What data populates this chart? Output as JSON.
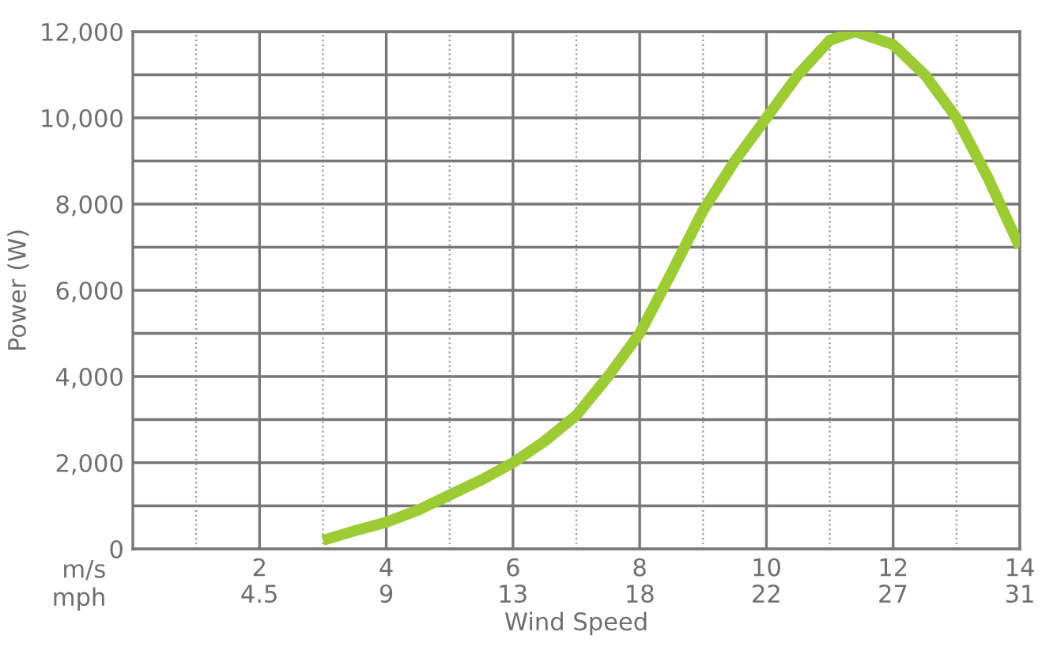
{
  "chart_data": {
    "type": "line",
    "xlabel": "Wind Speed",
    "ylabel": "Power (W)",
    "annotations": [
      "m/s\nmph"
    ],
    "x": [
      3,
      3.5,
      4,
      4.5,
      5,
      5.5,
      6,
      6.5,
      7,
      7.5,
      8,
      8.5,
      9,
      9.5,
      10,
      10.5,
      11,
      11.4,
      12,
      12.5,
      13,
      13.5,
      14
    ],
    "series": [
      {
        "color": "#9dcb34",
        "values": [
          200,
          420,
          620,
          900,
          1250,
          1600,
          2000,
          2500,
          3100,
          4000,
          5000,
          6400,
          7850,
          9000,
          10000,
          11000,
          11800,
          12000,
          11700,
          11000,
          10000,
          8600,
          7000
        ]
      }
    ],
    "xlim": [
      0,
      14
    ],
    "ylim": [
      0,
      12000
    ],
    "xticks": [
      {
        "value": 1,
        "label": null
      },
      2,
      {
        "value": 3,
        "label": null
      },
      4,
      {
        "value": 5,
        "label": null
      },
      6,
      {
        "value": 7,
        "label": null
      },
      8,
      {
        "value": 9,
        "label": null
      },
      10,
      {
        "value": 11,
        "label": null
      },
      12,
      {
        "value": 13,
        "label": null
      },
      14
    ],
    "x2lim": [
      0,
      31.32
    ],
    "x2ticks": [
      {
        "value": 4.47,
        "label": "4.5"
      },
      {
        "value": 8.95,
        "label": "9"
      },
      {
        "value": 13.42,
        "label": "13"
      },
      {
        "value": 17.9,
        "label": "18"
      },
      {
        "value": 22.37,
        "label": "22"
      },
      {
        "value": 26.84,
        "label": "27"
      },
      {
        "value": 31.32,
        "label": "31"
      }
    ],
    "yticks": [
      0,
      {
        "value": 1000,
        "label": null
      },
      {
        "value": 2000,
        "label": "2,000"
      },
      {
        "value": 3000,
        "label": null
      },
      {
        "value": 4000,
        "label": "4,000"
      },
      {
        "value": 5000,
        "label": null
      },
      {
        "value": 6000,
        "label": "6,000"
      },
      {
        "value": 7000,
        "label": null
      },
      {
        "value": 8000,
        "label": "8,000"
      },
      {
        "value": 9000,
        "label": null
      },
      {
        "value": 10000,
        "label": "10,000"
      },
      {
        "value": 11000,
        "label": null
      },
      {
        "value": 12000,
        "label": "12,000"
      }
    ],
    "grid": true,
    "line_style": "solid",
    "marker": "none",
    "legend": false
  }
}
